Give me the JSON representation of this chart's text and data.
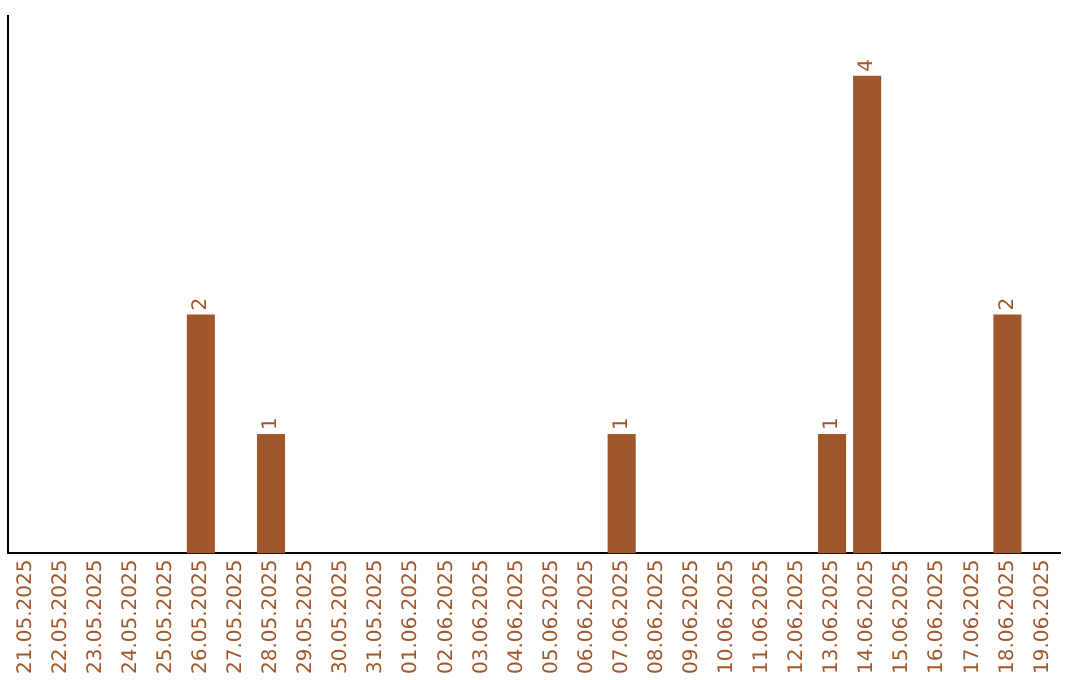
{
  "chart_data": {
    "type": "bar",
    "categories": [
      "21.05.2025",
      "22.05.2025",
      "23.05.2025",
      "24.05.2025",
      "25.05.2025",
      "26.05.2025",
      "27.05.2025",
      "28.05.2025",
      "29.05.2025",
      "30.05.2025",
      "31.05.2025",
      "01.06.2025",
      "02.06.2025",
      "03.06.2025",
      "04.06.2025",
      "05.06.2025",
      "06.06.2025",
      "07.06.2025",
      "08.06.2025",
      "09.06.2025",
      "10.06.2025",
      "11.06.2025",
      "12.06.2025",
      "13.06.2025",
      "14.06.2025",
      "15.06.2025",
      "16.06.2025",
      "17.06.2025",
      "18.06.2025",
      "19.06.2025"
    ],
    "values": [
      0,
      0,
      0,
      0,
      0,
      2,
      0,
      1,
      0,
      0,
      0,
      0,
      0,
      0,
      0,
      0,
      0,
      1,
      0,
      0,
      0,
      0,
      0,
      1,
      4,
      0,
      0,
      0,
      2,
      0
    ],
    "value_labels": [
      null,
      null,
      null,
      null,
      null,
      "2",
      null,
      "1",
      null,
      null,
      null,
      null,
      null,
      null,
      null,
      null,
      null,
      "1",
      null,
      null,
      null,
      null,
      null,
      "1",
      "4",
      null,
      null,
      null,
      "2",
      null
    ],
    "color": "#a0572b",
    "tick_labels": "x",
    "grid": false,
    "legend": false
  }
}
